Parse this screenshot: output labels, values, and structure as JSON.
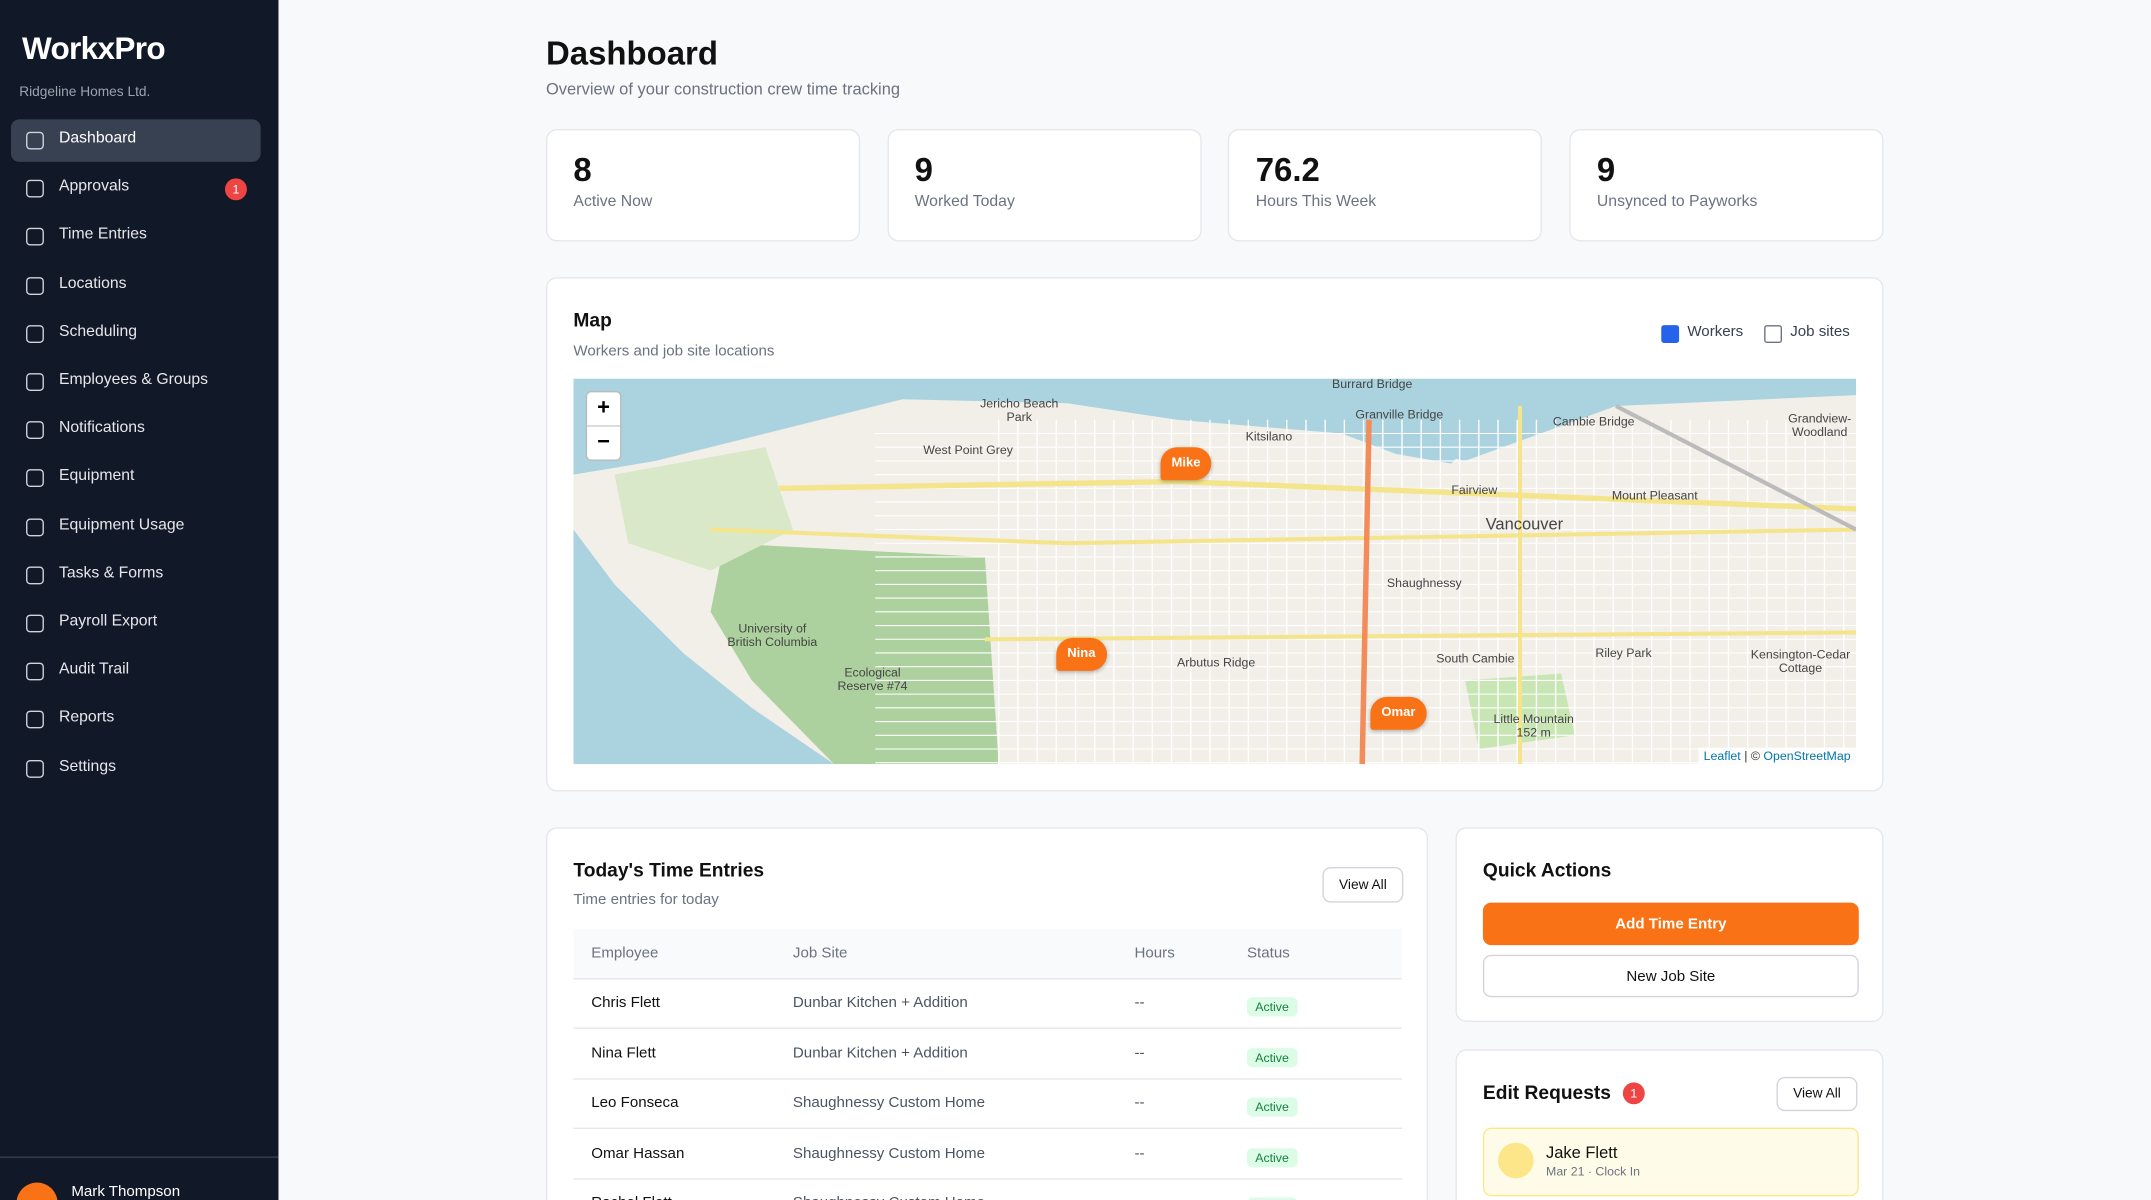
{
  "sidebar": {
    "brand": "WorkxPro",
    "company": "Ridgeline Homes Ltd.",
    "nav": [
      {
        "label": "Dashboard"
      },
      {
        "label": "Approvals",
        "badge": "1"
      },
      {
        "label": "Time Entries"
      },
      {
        "label": "Locations"
      },
      {
        "label": "Scheduling"
      },
      {
        "label": "Employees & Groups"
      },
      {
        "label": "Notifications"
      },
      {
        "label": "Equipment"
      },
      {
        "label": "Equipment Usage"
      },
      {
        "label": "Tasks & Forms"
      },
      {
        "label": "Payroll Export"
      },
      {
        "label": "Audit Trail"
      },
      {
        "label": "Reports"
      },
      {
        "label": "Settings"
      }
    ],
    "user": "Mark Thompson"
  },
  "header": {
    "title": "Dashboard",
    "subtitle": "Overview of your construction crew time tracking"
  },
  "stats": [
    {
      "value": "8",
      "label": "Active Now"
    },
    {
      "value": "9",
      "label": "Worked Today"
    },
    {
      "value": "76.2",
      "label": "Hours This Week"
    },
    {
      "value": "9",
      "label": "Unsynced to Payworks"
    }
  ],
  "map": {
    "title": "Map",
    "subtitle": "Workers and job site locations",
    "toggles": [
      {
        "label": "Workers",
        "checked": true
      },
      {
        "label": "Job sites",
        "checked": false
      }
    ],
    "zoom_in": "+",
    "zoom_out": "−",
    "places": [
      "Kitsilano",
      "Vancouver",
      "Fairview",
      "Mount Pleasant",
      "Shaughnessy",
      "Arbutus Ridge",
      "South Cambie",
      "Riley Park",
      "West Point Grey",
      "Kensington-Cedar Cottage",
      "Grandview-Woodland",
      "University of British Columbia",
      "Granville Bridge",
      "Cambie Bridge",
      "Burrard Bridge",
      "Jericho Beach Park",
      "Ecological Reserve #74",
      "Little Mountain 152 m"
    ],
    "markers": [
      "Mike",
      "Nina",
      "Omar"
    ],
    "attribution": {
      "leaflet": "Leaflet",
      "sep": "| ©",
      "osm": "OpenStreetMap"
    }
  },
  "time_entries": {
    "title": "Today's Time Entries",
    "subtitle": "Time entries for today",
    "button": "View All",
    "columns": [
      "Employee",
      "Job Site",
      "Hours",
      "Status"
    ],
    "rows": [
      [
        "Chris Flett",
        "Dunbar Kitchen + Addition",
        "--",
        "Active"
      ],
      [
        "Nina Flett",
        "Dunbar Kitchen + Addition",
        "--",
        "Active"
      ],
      [
        "Leo Fonseca",
        "Shaughnessy Custom Home",
        "--",
        "Active"
      ],
      [
        "Omar Hassan",
        "Shaughnessy Custom Home",
        "--",
        "Active"
      ],
      [
        "Rachel Flett",
        "Shaughnessy Custom Home",
        "--",
        "Active"
      ]
    ]
  },
  "quick_actions": {
    "title": "Quick Actions",
    "primary": "Add Time Entry",
    "secondary": "New Job Site"
  },
  "edit_requests": {
    "title": "Edit Requests",
    "badge": "1",
    "button": "View All",
    "items": [
      {
        "name": "Jake Flett",
        "detail": "Mar 21 · Clock In"
      }
    ]
  }
}
